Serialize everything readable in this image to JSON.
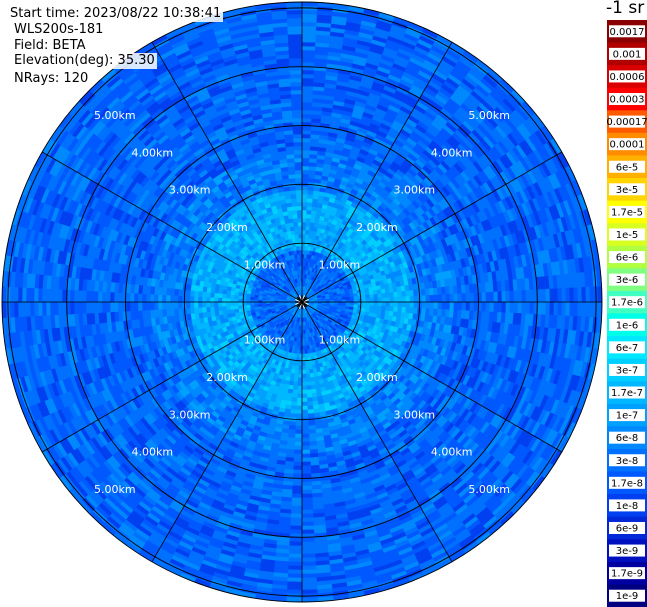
{
  "header": {
    "start_time": "Start time: 2023/08/22 10:38:41",
    "site": "WLS200s-181",
    "field": "Field: BETA",
    "elevation": "Elevation(deg): 35.30",
    "nrays": "NRays: 120"
  },
  "unit_label": "-1 sr",
  "chart_data": {
    "type": "heatmap",
    "projection": "polar",
    "field": "BETA",
    "elevation_deg": 35.3,
    "n_rays": 120,
    "range_rings_km": [
      1,
      2,
      3,
      4,
      5
    ],
    "ring_labels": [
      "1.00km",
      "2.00km",
      "3.00km",
      "4.00km",
      "5.00km"
    ],
    "radial_spokes_deg": [
      0,
      30,
      60,
      90,
      120,
      150,
      180,
      210,
      240,
      270,
      300,
      330
    ],
    "colorbar": {
      "scale": "log",
      "range": [
        1e-09,
        0.0017
      ],
      "ticks": [
        "0.0017",
        "0.001",
        "0.0006",
        "0.0003",
        "0.00017",
        "0.0001",
        "6e-5",
        "3e-5",
        "1.7e-5",
        "1e-5",
        "6e-6",
        "3e-6",
        "1.7e-6",
        "1e-6",
        "6e-7",
        "3e-7",
        "1.7e-7",
        "1e-7",
        "6e-8",
        "3e-8",
        "1.7e-8",
        "1e-8",
        "6e-9",
        "3e-9",
        "1.7e-9",
        "1e-9"
      ],
      "colors": [
        "#8b0000",
        "#b00000",
        "#d80000",
        "#ff0000",
        "#ff5a00",
        "#ff8c00",
        "#ffb000",
        "#ffd400",
        "#ffff00",
        "#d8ff20",
        "#b0ff40",
        "#80ff80",
        "#40ffc0",
        "#00ffe8",
        "#00e8ff",
        "#00d0ff",
        "#00b8ff",
        "#00a0ff",
        "#0088ff",
        "#0070ff",
        "#0058ff",
        "#0040f0",
        "#0028d8",
        "#0010c0",
        "#0000a0",
        "#000080"
      ]
    },
    "typical_values": {
      "near_center": "1.7e-7",
      "inner_ring": "3e-8",
      "outer_field": "3e-8"
    }
  }
}
